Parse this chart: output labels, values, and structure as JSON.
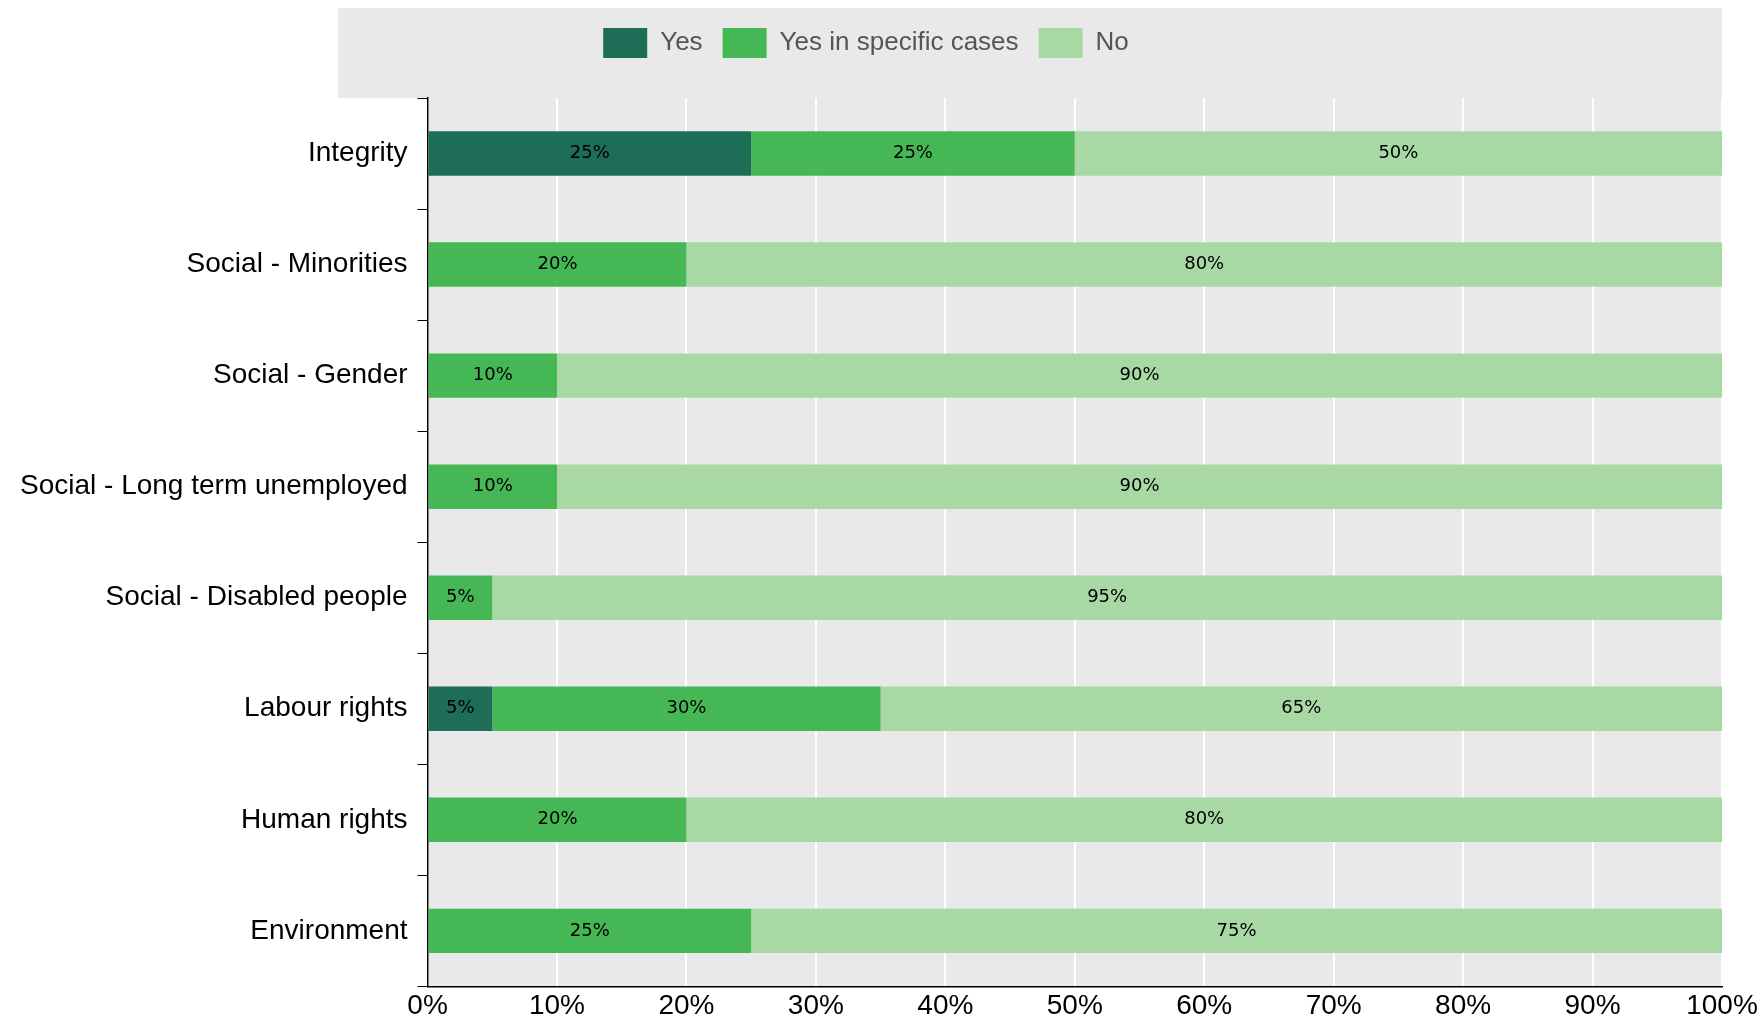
{
  "chart_data": {
    "type": "bar",
    "orientation": "horizontal",
    "stacked": true,
    "legend": "top",
    "grid": "x",
    "categories": [
      "Integrity",
      "Social - Minorities",
      "Social - Gender",
      "Social - Long term unemployed",
      "Social - Disabled people",
      "Labour rights",
      "Human rights",
      "Environment"
    ],
    "series": [
      {
        "name": "Yes",
        "color": "#1e6e57",
        "values": [
          25,
          0,
          0,
          0,
          0,
          5,
          0,
          0
        ],
        "value_labels": [
          "25%",
          null,
          null,
          null,
          null,
          "5%",
          null,
          null
        ]
      },
      {
        "name": "Yes in specific cases",
        "color": "#46b755",
        "values": [
          25,
          20,
          10,
          10,
          5,
          30,
          20,
          25
        ],
        "value_labels": [
          "25%",
          "20%",
          "10%",
          "10%",
          "5%",
          "30%",
          "20%",
          "25%"
        ]
      },
      {
        "name": "No",
        "color": "#a8d8a4",
        "values": [
          50,
          80,
          90,
          90,
          95,
          65,
          80,
          75
        ],
        "value_labels": [
          "50%",
          "80%",
          "90%",
          "90%",
          "95%",
          "65%",
          "80%",
          "75%"
        ]
      }
    ],
    "xlim": [
      0,
      100
    ],
    "xticks": [
      {
        "value": 0,
        "label": "0%"
      },
      {
        "value": 10,
        "label": "10%"
      },
      {
        "value": 20,
        "label": "20%"
      },
      {
        "value": 30,
        "label": "30%"
      },
      {
        "value": 40,
        "label": "40%"
      },
      {
        "value": 50,
        "label": "50%"
      },
      {
        "value": 60,
        "label": "60%"
      },
      {
        "value": 70,
        "label": "70%"
      },
      {
        "value": 80,
        "label": "80%"
      },
      {
        "value": 90,
        "label": "90%"
      },
      {
        "value": 100,
        "label": "100%"
      }
    ]
  }
}
